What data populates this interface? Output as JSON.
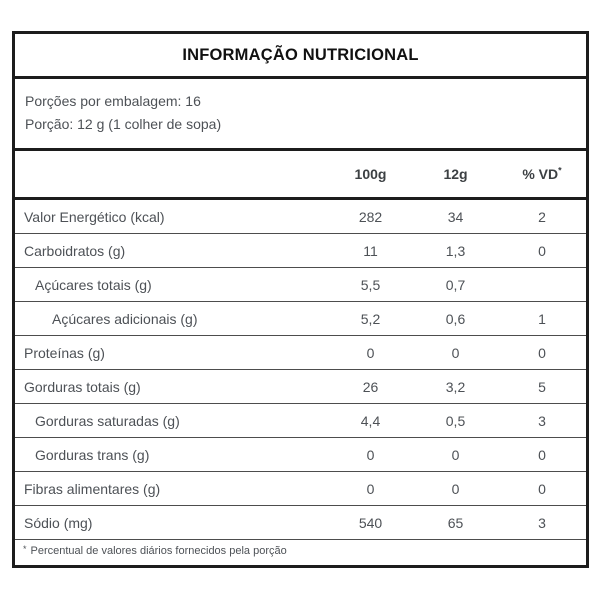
{
  "title": "INFORMAÇÃO NUTRICIONAL",
  "serving_info": {
    "servings_per_package": "Porções por embalagem: 16",
    "serving_size": "Porção: 12 g (1 colher de sopa)"
  },
  "columns": {
    "per_100g": "100g",
    "per_12g": "12g",
    "daily_value": "% VD",
    "daily_value_marker": "*"
  },
  "rows": [
    {
      "label": "Valor Energético (kcal)",
      "indent": 0,
      "v100g": "282",
      "v12g": "34",
      "vd": "2"
    },
    {
      "label": "Carboidratos (g)",
      "indent": 0,
      "v100g": "11",
      "v12g": "1,3",
      "vd": "0"
    },
    {
      "label": "Açúcares totais (g)",
      "indent": 1,
      "v100g": "5,5",
      "v12g": "0,7",
      "vd": ""
    },
    {
      "label": "Açúcares adicionais (g)",
      "indent": 2,
      "v100g": "5,2",
      "v12g": "0,6",
      "vd": "1"
    },
    {
      "label": "Proteínas (g)",
      "indent": 0,
      "v100g": "0",
      "v12g": "0",
      "vd": "0"
    },
    {
      "label": "Gorduras totais (g)",
      "indent": 0,
      "v100g": "26",
      "v12g": "3,2",
      "vd": "5"
    },
    {
      "label": "Gorduras saturadas (g)",
      "indent": 1,
      "v100g": "4,4",
      "v12g": "0,5",
      "vd": "3"
    },
    {
      "label": "Gorduras trans (g)",
      "indent": 1,
      "v100g": "0",
      "v12g": "0",
      "vd": "0"
    },
    {
      "label": "Fibras alimentares (g)",
      "indent": 0,
      "v100g": "0",
      "v12g": "0",
      "vd": "0"
    },
    {
      "label": "Sódio (mg)",
      "indent": 0,
      "v100g": "540",
      "v12g": "65",
      "vd": "3"
    }
  ],
  "footnote": {
    "marker": "*",
    "text": "Percentual de valores diários fornecidos pela porção"
  },
  "colors": {
    "border_thick": "#1c1c1c",
    "border_thin": "#4d4d4d",
    "title_text": "#111111",
    "body_text": "#4d5156",
    "background": "#ffffff"
  }
}
